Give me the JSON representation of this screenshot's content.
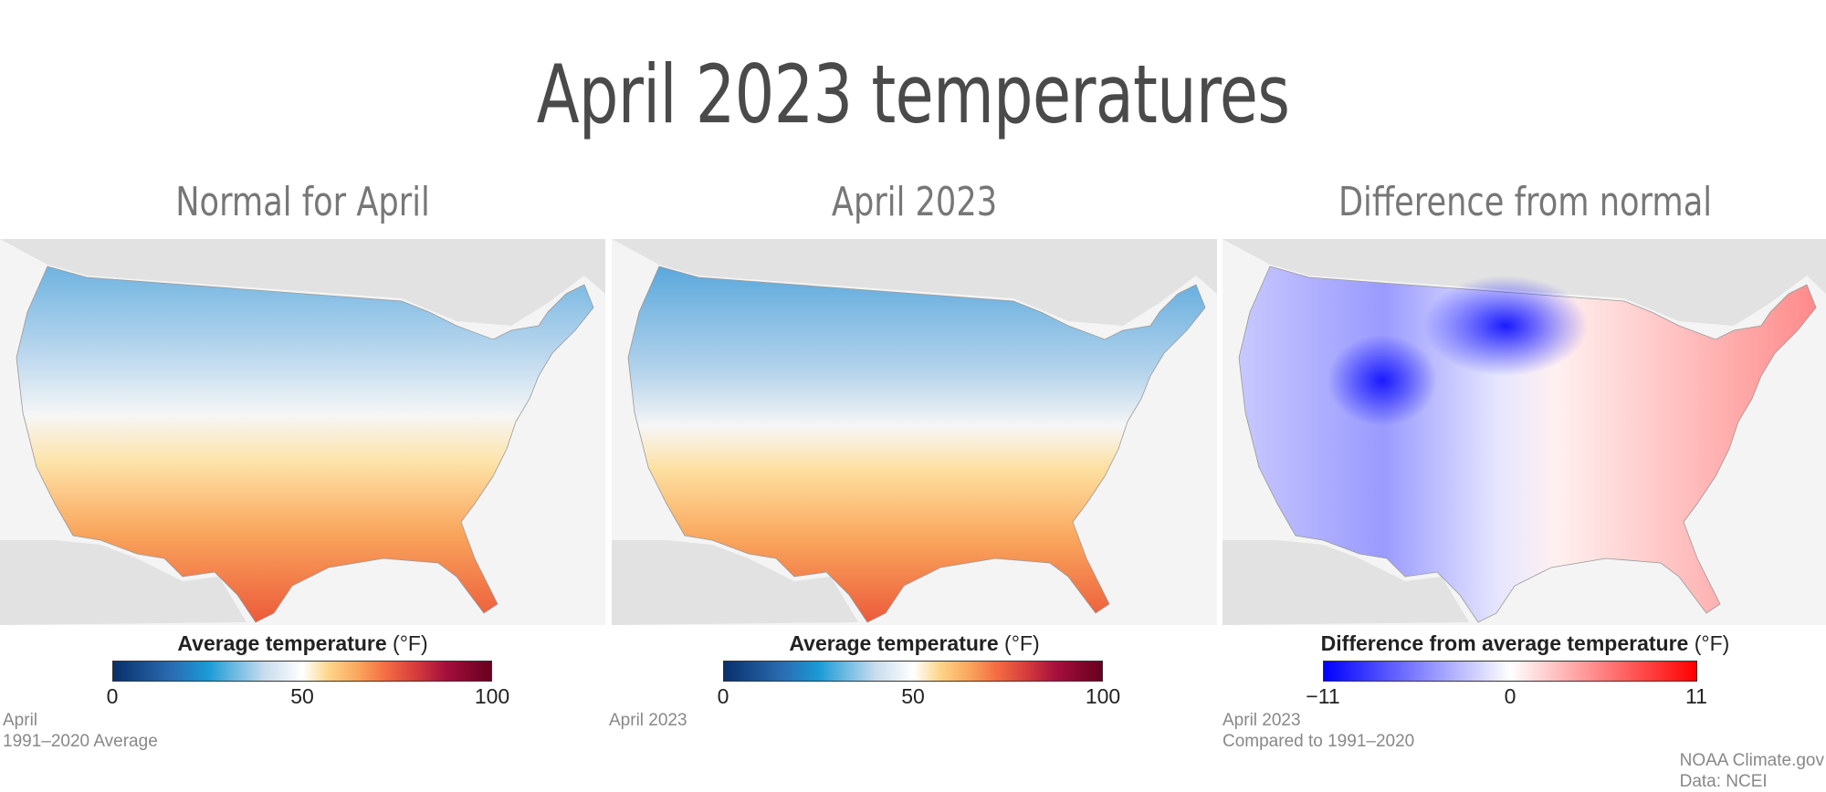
{
  "title": "April 2023 temperatures",
  "panels": [
    {
      "title": "Normal for April",
      "legend_title": "Average temperature",
      "legend_unit": "(°F)",
      "ticks": [
        "0",
        "50",
        "100"
      ],
      "note_lines": [
        "April",
        "1991–2020 Average"
      ],
      "colormap": [
        "#08306b",
        "#1a9ad6",
        "#ffffff",
        "#fdbf6f",
        "#f46d43",
        "#a50f3c",
        "#67001f"
      ]
    },
    {
      "title": "April 2023",
      "legend_title": "Average temperature",
      "legend_unit": "(°F)",
      "ticks": [
        "0",
        "50",
        "100"
      ],
      "note_lines": [
        "April 2023"
      ],
      "colormap": [
        "#08306b",
        "#1a9ad6",
        "#ffffff",
        "#fdbf6f",
        "#f46d43",
        "#a50f3c",
        "#67001f"
      ]
    },
    {
      "title": "Difference from normal",
      "legend_title": "Difference from average temperature",
      "legend_unit": "(°F)",
      "ticks": [
        "−11",
        "0",
        "11"
      ],
      "note_lines": [
        "April 2023",
        "Compared to 1991–2020"
      ],
      "colormap": [
        "#0000ff",
        "#ffffff",
        "#ff0000"
      ]
    }
  ],
  "credit": [
    "NOAA Climate.gov",
    "Data: NCEI"
  ]
}
